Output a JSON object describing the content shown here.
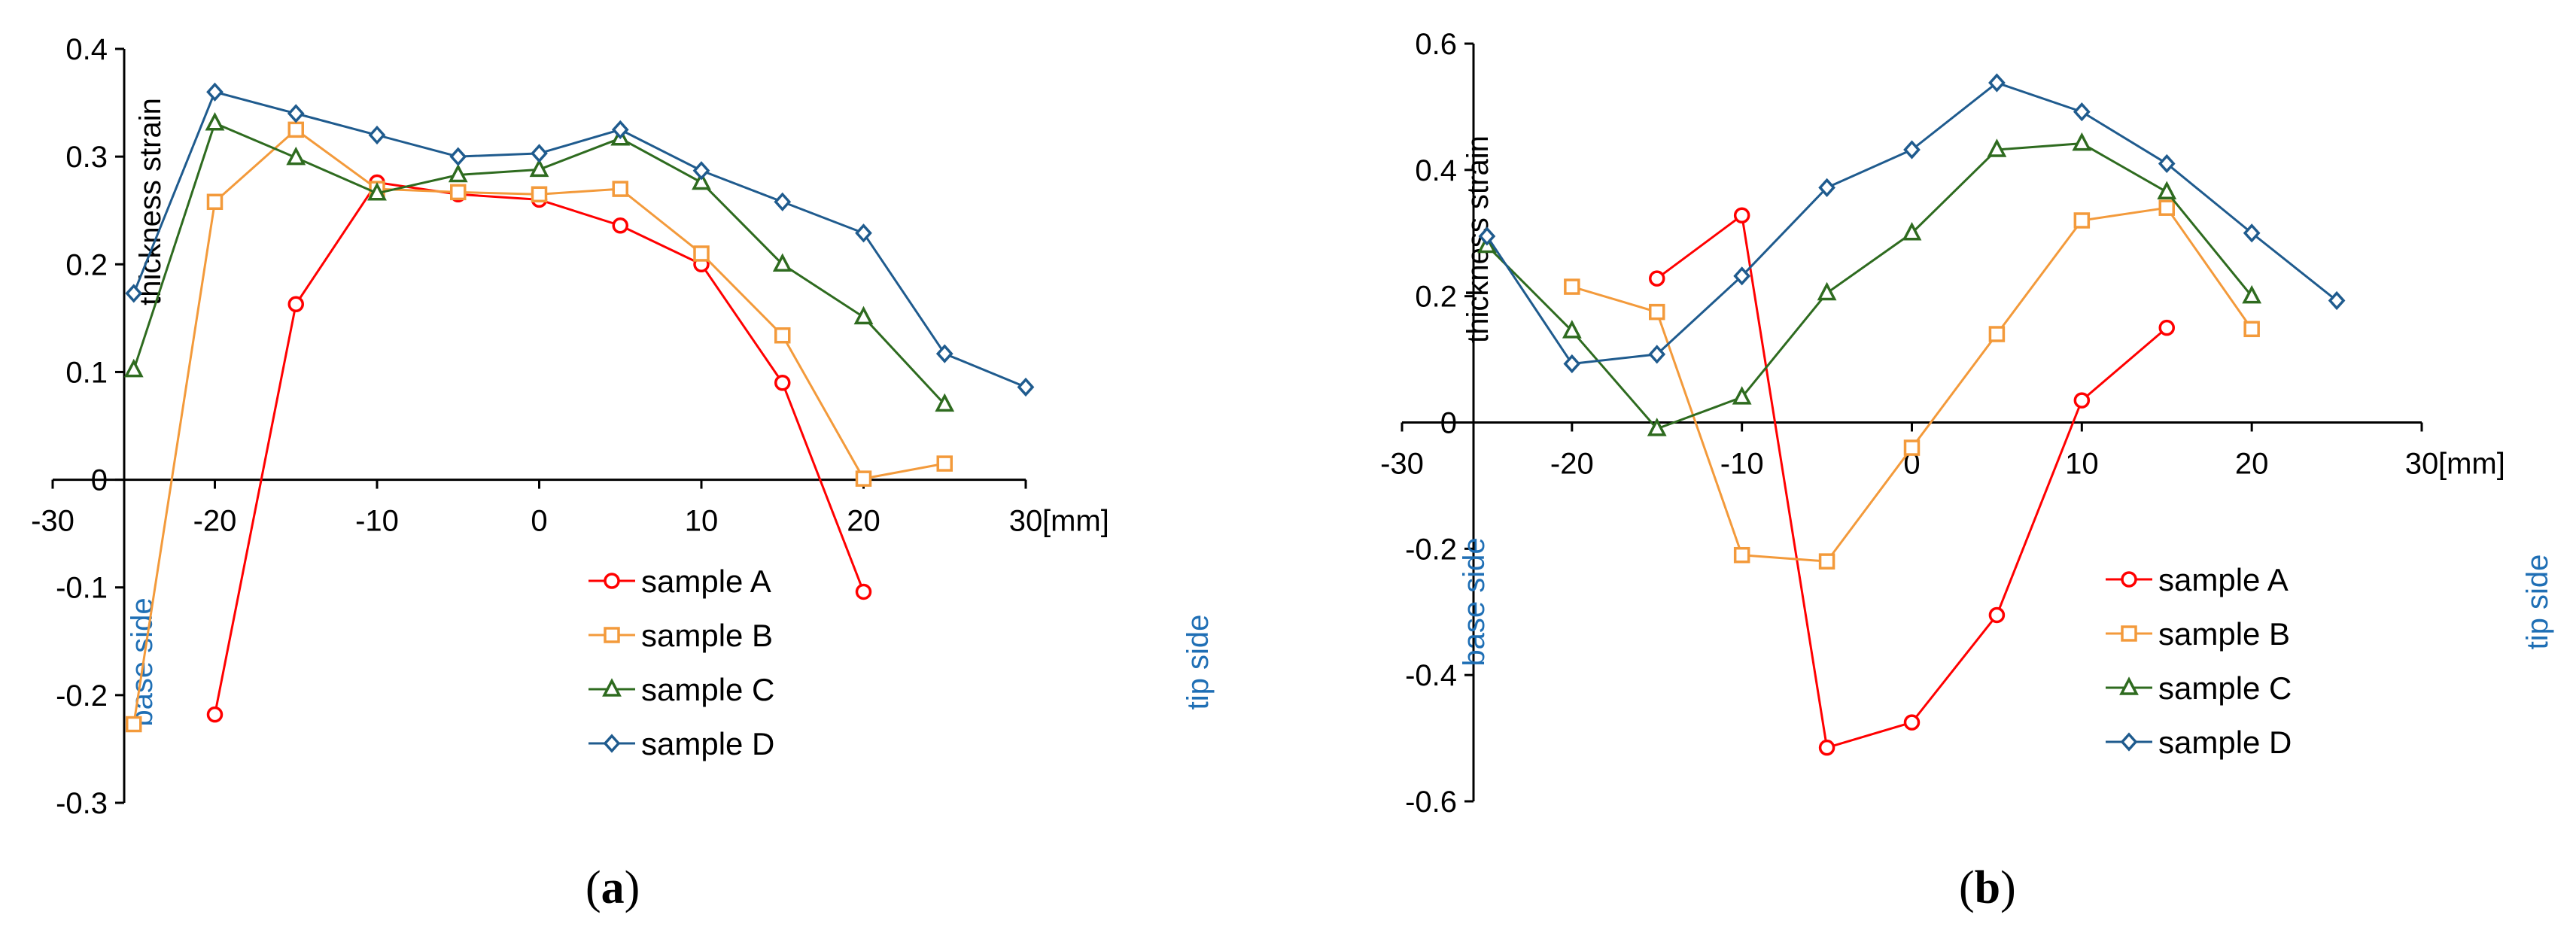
{
  "chart_data": [
    {
      "type": "line",
      "panel": "a",
      "caption": {
        "open": "(",
        "letter": "a",
        "close": ")"
      },
      "ylabel": "thickness strain",
      "xunit": "[mm]",
      "base_label": "base side",
      "tip_label": "tip side",
      "xlim": [
        -30,
        30
      ],
      "ylim": [
        -0.3,
        0.4
      ],
      "xticks": [
        -30,
        -20,
        -10,
        0,
        10,
        20,
        30
      ],
      "xtick_labels": [
        "-30",
        "-20",
        "-10",
        "0",
        "10",
        "20",
        "30"
      ],
      "yticks": [
        -0.3,
        -0.2,
        -0.1,
        0,
        0.1,
        0.2,
        0.3,
        0.4
      ],
      "ytick_labels": [
        "-0.3",
        "-0.2",
        "-0.1",
        "0",
        "0.1",
        "0.2",
        "0.3",
        "0.4"
      ],
      "series": [
        {
          "name": "sample A",
          "color": "#ff0000",
          "marker": "circle",
          "x": [
            -20,
            -15,
            -10,
            -5,
            0,
            5,
            10,
            15,
            20
          ],
          "y": [
            -0.218,
            0.163,
            0.276,
            0.265,
            0.26,
            0.236,
            0.2,
            0.09,
            -0.104
          ]
        },
        {
          "name": "sample B",
          "color": "#f39a3b",
          "marker": "square",
          "x": [
            -25,
            -20,
            -15,
            -10,
            -5,
            0,
            5,
            10,
            15,
            20,
            25
          ],
          "y": [
            -0.227,
            0.258,
            0.325,
            0.27,
            0.267,
            0.265,
            0.27,
            0.21,
            0.134,
            0.001,
            0.015
          ]
        },
        {
          "name": "sample C",
          "color": "#2e6b1f",
          "marker": "triangle",
          "x": [
            -25,
            -20,
            -15,
            -10,
            -5,
            0,
            5,
            10,
            15,
            20,
            25
          ],
          "y": [
            0.102,
            0.331,
            0.299,
            0.266,
            0.283,
            0.288,
            0.317,
            0.276,
            0.2,
            0.151,
            0.07
          ]
        },
        {
          "name": "sample D",
          "color": "#1f5b8e",
          "marker": "diamond",
          "x": [
            -25,
            -20,
            -15,
            -10,
            -5,
            0,
            5,
            10,
            15,
            20,
            25,
            30
          ],
          "y": [
            0.173,
            0.36,
            0.34,
            0.32,
            0.3,
            0.303,
            0.325,
            0.287,
            0.258,
            0.229,
            0.117,
            0.086
          ]
        }
      ]
    },
    {
      "type": "line",
      "panel": "b",
      "caption": {
        "open": "(",
        "letter": "b",
        "close": ")"
      },
      "ylabel": "thickness strain",
      "xunit": "[mm]",
      "base_label": "base side",
      "tip_label": "tip side",
      "xlim": [
        -30,
        30
      ],
      "ylim": [
        -0.6,
        0.6
      ],
      "xticks": [
        -30,
        -20,
        -10,
        0,
        10,
        20,
        30
      ],
      "xtick_labels": [
        "-30",
        "-20",
        "-10",
        "0",
        "10",
        "20",
        "30"
      ],
      "yticks": [
        -0.6,
        -0.4,
        -0.2,
        0,
        0.2,
        0.4,
        0.6
      ],
      "ytick_labels": [
        "-0.6",
        "-0.4",
        "-0.2",
        "0",
        "0.2",
        "0.4",
        "0.6"
      ],
      "series": [
        {
          "name": "sample A",
          "color": "#ff0000",
          "marker": "circle",
          "x": [
            -15,
            -10,
            -5,
            0,
            5,
            10,
            15
          ],
          "y": [
            0.228,
            0.328,
            -0.515,
            -0.475,
            -0.305,
            0.035,
            0.15
          ]
        },
        {
          "name": "sample B",
          "color": "#f39a3b",
          "marker": "square",
          "x": [
            -20,
            -15,
            -10,
            -5,
            0,
            5,
            10,
            15,
            20
          ],
          "y": [
            0.215,
            0.175,
            -0.21,
            -0.22,
            -0.04,
            0.14,
            0.32,
            0.34,
            0.148
          ]
        },
        {
          "name": "sample C",
          "color": "#2e6b1f",
          "marker": "triangle",
          "x": [
            -25,
            -20,
            -15,
            -10,
            -5,
            0,
            5,
            10,
            15,
            20
          ],
          "y": [
            0.28,
            0.145,
            -0.01,
            0.04,
            0.205,
            0.3,
            0.432,
            0.442,
            0.365,
            0.2
          ]
        },
        {
          "name": "sample D",
          "color": "#1f5b8e",
          "marker": "diamond",
          "x": [
            -25,
            -20,
            -15,
            -10,
            -5,
            0,
            5,
            10,
            15,
            20,
            25
          ],
          "y": [
            0.295,
            0.093,
            0.108,
            0.232,
            0.372,
            0.432,
            0.538,
            0.492,
            0.41,
            0.3,
            0.193
          ]
        }
      ]
    }
  ]
}
